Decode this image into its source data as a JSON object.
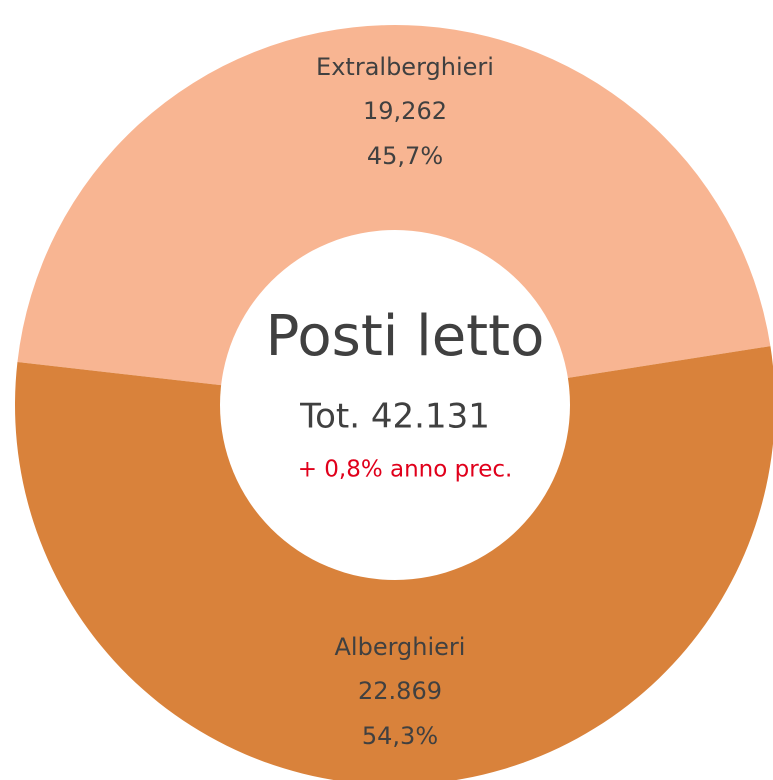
{
  "chart_data": {
    "type": "pie",
    "donut": true,
    "title": "Posti letto",
    "subtitle": "Tot. 42.131",
    "annotation": "+ 0,8% anno prec.",
    "categories": [
      "Extralberghieri",
      "Alberghieri"
    ],
    "values": [
      19262,
      22869
    ],
    "value_labels": [
      "19,262",
      "22.869"
    ],
    "percentages": [
      45.7,
      54.3
    ],
    "percentage_labels": [
      "45,7%",
      "54,3%"
    ],
    "colors": [
      "#f8b592",
      "#d9823b"
    ]
  }
}
